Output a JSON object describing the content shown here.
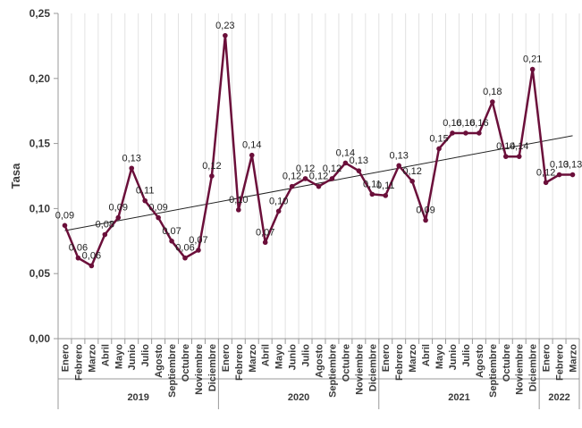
{
  "chart_data": {
    "type": "line",
    "title": "",
    "xlabel": "",
    "ylabel": "Tasa",
    "ylim": [
      0,
      0.25
    ],
    "yticks": [
      "0,00",
      "0,05",
      "0,10",
      "0,15",
      "0,20",
      "0,25"
    ],
    "ytick_values": [
      0,
      0.05,
      0.1,
      0.15,
      0.2,
      0.25
    ],
    "grid": {
      "horizontal": false,
      "vertical": true
    },
    "legend": "none",
    "categories": [
      "Enero",
      "Febrero",
      "Marzo",
      "Abril",
      "Mayo",
      "Junio",
      "Julio",
      "Agosto",
      "Septiembre",
      "Octubre",
      "Noviembre",
      "Diciembre",
      "Enero",
      "Febrero",
      "Marzo",
      "Abril",
      "Mayo",
      "Junio",
      "Julio",
      "Agosto",
      "Septiembre",
      "Octubre",
      "Noviembre",
      "Diciembre",
      "Enero",
      "Febrero",
      "Marzo",
      "Abril",
      "Mayo",
      "Junio",
      "Julio",
      "Agosto",
      "Septiembre",
      "Octubre",
      "Noviembre",
      "Diciembre",
      "Enero",
      "Febrero",
      "Marzo"
    ],
    "year_groups": [
      {
        "label": "2019",
        "count": 12
      },
      {
        "label": "2020",
        "count": 12
      },
      {
        "label": "2021",
        "count": 12
      },
      {
        "label": "2022",
        "count": 3
      }
    ],
    "series": [
      {
        "values": [
          0.087,
          0.062,
          0.056,
          0.08,
          0.093,
          0.131,
          0.106,
          0.093,
          0.075,
          0.062,
          0.068,
          0.125,
          0.233,
          0.099,
          0.141,
          0.074,
          0.098,
          0.117,
          0.123,
          0.117,
          0.123,
          0.135,
          0.129,
          0.111,
          0.11,
          0.133,
          0.121,
          0.091,
          0.146,
          0.158,
          0.158,
          0.158,
          0.182,
          0.14,
          0.14,
          0.207,
          0.12,
          0.126,
          0.126
        ],
        "labels": [
          "0,09",
          "0,06",
          "0,06",
          "0,08",
          "0,09",
          "0,13",
          "0,11",
          "0,09",
          "0,07",
          "0,06",
          "0,07",
          "0,12",
          "0,23",
          "0,10",
          "0,14",
          "0,07",
          "0,10",
          "0,12",
          "0,12",
          "0,12",
          "0,12",
          "0,14",
          "0,13",
          "0,11",
          "0,11",
          "0,13",
          "0,12",
          "0,09",
          "0,15",
          "0,16",
          "0,16",
          "0,16",
          "0,18",
          "0,14",
          "0,14",
          "0,21",
          "0,12",
          "0,13",
          "0,13"
        ],
        "color": "#6b0f3a"
      }
    ],
    "trendline": {
      "start": 0.083,
      "end": 0.156,
      "color": "#222222"
    }
  }
}
